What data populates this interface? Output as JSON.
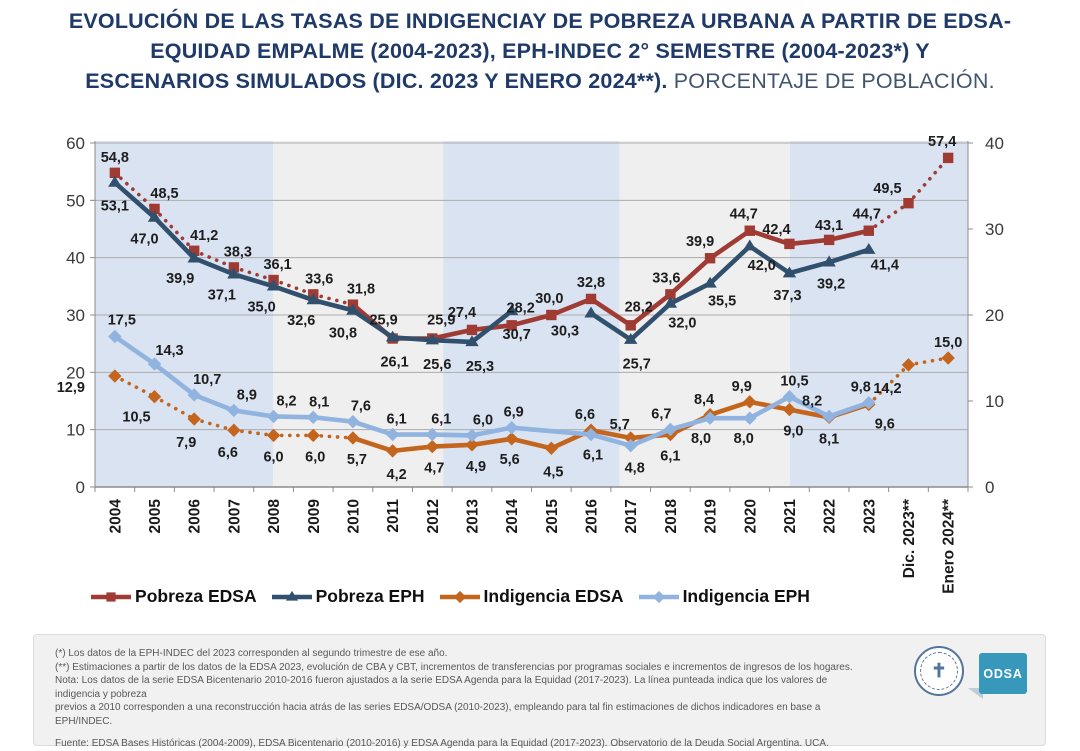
{
  "title": {
    "line1": "EVOLUCIÓN DE LAS TASAS DE INDIGENCIAY DE POBREZA URBANA A PARTIR DE EDSA-",
    "line2": "EQUIDAD EMPALME (2004-2023), EPH-INDEC 2°  SEMESTRE (2004-2023*) Y",
    "line3_bold": "ESCENARIOS SIMULADOS (DIC. 2023 Y ENERO 2024**).",
    "line3_regular": "PORCENTAJE DE POBLACIÓN."
  },
  "chart_data": {
    "type": "line",
    "categories": [
      "2004",
      "2005",
      "2006",
      "2007",
      "2008",
      "2009",
      "2010",
      "2011",
      "2012",
      "2013",
      "2014",
      "2015",
      "2016",
      "2017",
      "2018",
      "2019",
      "2020",
      "2021",
      "2022",
      "2023",
      "Dic. 2023**",
      "Enero 2024**"
    ],
    "left_axis": {
      "min": 0,
      "max": 60,
      "ticks": [
        0,
        10,
        20,
        30,
        40,
        50,
        60
      ]
    },
    "right_axis": {
      "min": 0,
      "max": 40,
      "ticks": [
        0,
        10,
        20,
        30,
        40
      ]
    },
    "grid": true,
    "legend_position": "bottom",
    "band_colors": {
      "blue": "#D9E3F1",
      "gray": "#EFEFEF"
    },
    "label_color": "#1D1D1D",
    "axis_color": "#8C8C8C",
    "grid_color": "#ACACAC",
    "series": [
      {
        "name": "Pobreza EDSA",
        "axis": "left",
        "color": "#9F3B33",
        "marker": "square",
        "dotted_pairs": [
          [
            0,
            6
          ],
          [
            19,
            21
          ]
        ],
        "values": [
          54.8,
          48.5,
          41.2,
          38.3,
          36.1,
          33.6,
          31.8,
          25.9,
          25.9,
          27.4,
          28.2,
          30.0,
          32.8,
          28.2,
          33.6,
          39.9,
          44.7,
          42.4,
          43.1,
          44.7,
          49.5,
          57.4
        ],
        "label_offsets": [
          [
            0,
            -11
          ],
          [
            10,
            -11
          ],
          [
            10,
            -11
          ],
          [
            4,
            -11
          ],
          [
            4,
            -11
          ],
          [
            6,
            -11
          ],
          [
            8,
            -11
          ],
          [
            -9,
            -14
          ],
          [
            9,
            -14
          ],
          [
            -10,
            -13
          ],
          [
            9,
            -13
          ],
          [
            -2,
            -12
          ],
          [
            0,
            -12
          ],
          [
            8,
            -14
          ],
          [
            -4,
            -12
          ],
          [
            -10,
            -12
          ],
          [
            -6,
            -12
          ],
          [
            -13,
            -10
          ],
          [
            0,
            -10
          ],
          [
            -2,
            -12
          ],
          [
            -21,
            -10
          ],
          [
            -6,
            -12
          ]
        ]
      },
      {
        "name": "Pobreza EPH",
        "axis": "left",
        "color": "#31506E",
        "marker": "triangle",
        "bridge_gaps": false,
        "values": [
          53.1,
          47.0,
          39.9,
          37.1,
          35.0,
          32.6,
          30.8,
          26.1,
          25.6,
          25.3,
          30.7,
          null,
          30.3,
          25.7,
          32.0,
          35.5,
          42.0,
          37.3,
          39.2,
          41.4,
          null,
          null
        ],
        "label_offsets": [
          [
            0,
            28
          ],
          [
            -10,
            26
          ],
          [
            -14,
            25
          ],
          [
            -12,
            25
          ],
          [
            -12,
            25
          ],
          [
            -12,
            25
          ],
          [
            -10,
            27
          ],
          [
            2,
            29
          ],
          [
            5,
            29
          ],
          [
            8,
            29
          ],
          [
            5,
            28
          ],
          null,
          [
            -26,
            22
          ],
          [
            6,
            29
          ],
          [
            12,
            24
          ],
          [
            12,
            22
          ],
          [
            12,
            24
          ],
          [
            -2,
            27
          ],
          [
            2,
            26
          ],
          [
            16,
            20
          ],
          null,
          null
        ]
      },
      {
        "name": "Indigencia EDSA",
        "axis": "right",
        "color": "#C4651D",
        "marker": "diamond",
        "dotted_pairs": [
          [
            0,
            6
          ],
          [
            19,
            21
          ]
        ],
        "values": [
          12.9,
          10.5,
          7.9,
          6.6,
          6.0,
          6.0,
          5.7,
          4.2,
          4.7,
          4.9,
          5.6,
          4.5,
          6.6,
          5.7,
          6.1,
          8.4,
          9.9,
          9.0,
          8.1,
          9.6,
          14.2,
          15.0
        ],
        "label_offsets": [
          [
            -44,
            16
          ],
          [
            -18,
            25
          ],
          [
            -8,
            28
          ],
          [
            -6,
            27
          ],
          [
            0,
            26
          ],
          [
            2,
            26
          ],
          [
            4,
            26
          ],
          [
            4,
            28
          ],
          [
            2,
            26
          ],
          [
            4,
            26
          ],
          [
            -2,
            25
          ],
          [
            2,
            28
          ],
          [
            -6,
            -11
          ],
          [
            -11,
            -9
          ],
          [
            0,
            26
          ],
          [
            -6,
            -11
          ],
          [
            -8,
            -11
          ],
          [
            4,
            26
          ],
          [
            0,
            26
          ],
          [
            16,
            24
          ],
          [
            -21,
            28
          ],
          [
            0,
            -11
          ]
        ]
      },
      {
        "name": "Indigencia EPH",
        "axis": "right",
        "color": "#90B4DF",
        "marker": "diamond",
        "bridge_gaps": true,
        "values": [
          17.5,
          14.3,
          10.7,
          8.9,
          8.2,
          8.1,
          7.6,
          6.1,
          6.1,
          6.0,
          6.9,
          null,
          6.1,
          4.8,
          6.7,
          8.0,
          8.0,
          10.5,
          8.2,
          9.8,
          null,
          null
        ],
        "label_offsets": [
          [
            7,
            -12
          ],
          [
            15,
            -9
          ],
          [
            13,
            -11
          ],
          [
            13,
            -11
          ],
          [
            13,
            -11
          ],
          [
            6,
            -11
          ],
          [
            8,
            -11
          ],
          [
            4,
            -11
          ],
          [
            9,
            -11
          ],
          [
            11,
            -11
          ],
          [
            2,
            -11
          ],
          null,
          [
            2,
            25
          ],
          [
            4,
            27
          ],
          [
            -9,
            -11
          ],
          [
            -9,
            25
          ],
          [
            -6,
            25
          ],
          [
            5,
            -11
          ],
          [
            -17,
            -11
          ],
          [
            -8,
            -11
          ],
          null,
          null
        ]
      }
    ]
  },
  "footnotes": {
    "line1": "(*) Los datos de la EPH-INDEC del 2023 corresponden al segundo trimestre de ese año.",
    "line2": "(**) Estimaciones a partir de los datos de la EDSA 2023, evolución de CBA y CBT, incrementos de transferencias por programas sociales e incrementos de ingresos  de los hogares.",
    "line3": "Nota: Los datos de la serie EDSA Bicentenario 2010-2016 fueron ajustados a la serie EDSA Agenda para la Equidad (2017-2023). La línea punteada indica que los valores de indigencia y pobreza",
    "line4": "previos a 2010 corresponden a una reconstrucción hacia atrás de las series EDSA/ODSA (2010-2023), empleando para tal fin estimaciones de dichos indicadores en base a EPH/INDEC.",
    "source": "Fuente: EDSA Bases Históricas (2004-2009), EDSA Bicentenario (2010-2016) y EDSA Agenda para la Equidad (2017-2023). Observatorio de la Deuda Social Argentina. UCA."
  },
  "logos": {
    "uca_cross": "✝",
    "odsa_label": "ODSA"
  }
}
